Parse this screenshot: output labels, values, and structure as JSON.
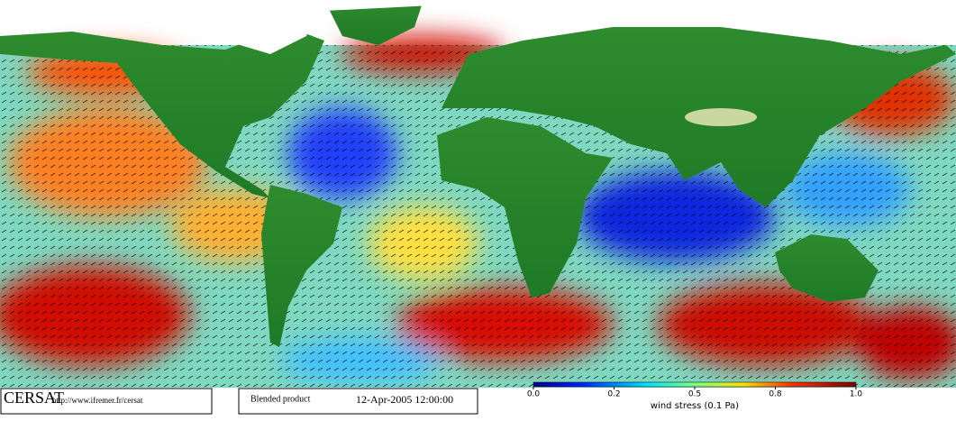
{
  "footer": {
    "logo": "CERSAT",
    "url": "http://www.ifremer.fr/cersat",
    "product": "Blended product",
    "date": "12-Apr-2005 12:00:00"
  },
  "colorbar": {
    "label": "wind stress (0.1 Pa)",
    "ticks": [
      {
        "value": 0,
        "label": "0.0"
      },
      0.2,
      0.5,
      0.8,
      {
        "value": 1,
        "label": "1.0"
      }
    ]
  }
}
